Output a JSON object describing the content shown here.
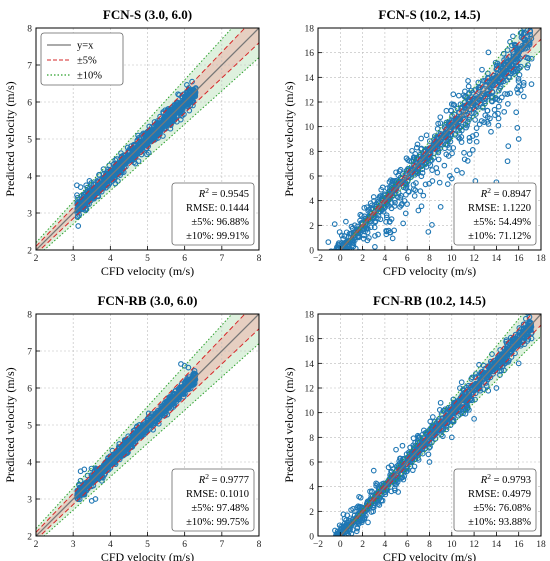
{
  "colors": {
    "points": "#1f77b4",
    "band5": "#e8c9bc",
    "band10": "#d8eed8",
    "identity": "#777777",
    "line5": "#d62728",
    "line10": "#2ca02c"
  },
  "legend": {
    "placement": "top-left of first panel",
    "entries": [
      {
        "label": "y=x",
        "style": "solid-gray"
      },
      {
        "label": "±5%",
        "style": "dashed-red"
      },
      {
        "label": "±10%",
        "style": "dotted-green"
      }
    ]
  },
  "chart_data": [
    {
      "type": "scatter",
      "title": "FCN-S (3.0, 6.0)",
      "xlabel": "CFD velocity (m/s)",
      "ylabel": "Predicted velocity (m/s)",
      "xlim": [
        2,
        8
      ],
      "ylim": [
        2,
        8
      ],
      "xticks": [
        2,
        3,
        4,
        5,
        6,
        7,
        8
      ],
      "yticks": [
        2,
        3,
        4,
        5,
        6,
        7,
        8
      ],
      "xticklabels": [
        "2",
        "3",
        "4",
        "5",
        "6",
        "7",
        "8"
      ],
      "yticklabels": [
        "2",
        "3",
        "4",
        "5",
        "6",
        "7",
        "8"
      ],
      "grid": true,
      "stats": [
        "R² = 0.9545",
        "RMSE: 0.1444",
        "±5%: 96.88%",
        "±10%: 99.91%"
      ],
      "scatter_range": [
        3.1,
        6.3
      ],
      "spread": 0.14,
      "outliers": [
        [
          3.1,
          3.75
        ],
        [
          3.2,
          3.7
        ],
        [
          3.35,
          3.75
        ],
        [
          4.5,
          4.45
        ],
        [
          6.2,
          6.55
        ]
      ]
    },
    {
      "type": "scatter",
      "title": "FCN-S  (10.2, 14.5)",
      "xlabel": "CFD velocity (m/s)",
      "ylabel": "Predicted velocity (m/s)",
      "xlim": [
        -2,
        18
      ],
      "ylim": [
        0,
        18
      ],
      "xticks": [
        -2,
        0,
        2,
        4,
        6,
        8,
        10,
        12,
        14,
        16,
        18
      ],
      "yticks": [
        0,
        2,
        4,
        6,
        8,
        10,
        12,
        14,
        16,
        18
      ],
      "xticklabels": [
        "−2",
        "0",
        "2",
        "4",
        "6",
        "8",
        "10",
        "12",
        "14",
        "16",
        "18"
      ],
      "yticklabels": [
        "0",
        "2",
        "4",
        "6",
        "8",
        "10",
        "12",
        "14",
        "16",
        "18"
      ],
      "grid": true,
      "stats": [
        "R² = 0.8947",
        "RMSE: 1.1220",
        "±5%: 54.49%",
        "±10%: 71.12%"
      ],
      "scatter_range": [
        -1.5,
        17.2
      ],
      "spread": 1.1,
      "outliers": [
        [
          -0.5,
          2.1
        ],
        [
          0.5,
          2.3
        ],
        [
          1.0,
          1.9
        ],
        [
          3.0,
          4.3
        ],
        [
          5.0,
          6.3
        ],
        [
          9.0,
          3.5
        ],
        [
          11.0,
          2.5
        ],
        [
          12.0,
          3.0
        ],
        [
          13.0,
          4.2
        ],
        [
          14.0,
          5.5
        ],
        [
          15.0,
          7.2
        ],
        [
          16.0,
          9.0
        ],
        [
          12.5,
          10.2
        ],
        [
          7.0,
          3.2
        ],
        [
          10.0,
          5.8
        ]
      ]
    },
    {
      "type": "scatter",
      "title": "FCN-RB (3.0, 6.0)",
      "xlabel": "CFD velocity (m/s)",
      "ylabel": "Predicted velocity (m/s)",
      "xlim": [
        2,
        8
      ],
      "ylim": [
        2,
        8
      ],
      "xticks": [
        2,
        3,
        4,
        5,
        6,
        7,
        8
      ],
      "yticks": [
        2,
        3,
        4,
        5,
        6,
        7,
        8
      ],
      "xticklabels": [
        "2",
        "3",
        "4",
        "5",
        "6",
        "7",
        "8"
      ],
      "yticklabels": [
        "2",
        "3",
        "4",
        "5",
        "6",
        "7",
        "8"
      ],
      "grid": true,
      "stats": [
        "R² = 0.9777",
        "RMSE: 0.1010",
        "±5%: 97.48%",
        "±10%: 99.75%"
      ],
      "scatter_range": [
        3.1,
        6.3
      ],
      "spread": 0.1,
      "outliers": [
        [
          3.2,
          3.75
        ],
        [
          3.3,
          3.8
        ],
        [
          3.5,
          2.95
        ],
        [
          3.6,
          3.0
        ],
        [
          5.9,
          6.65
        ],
        [
          6.0,
          6.6
        ],
        [
          6.1,
          6.55
        ]
      ]
    },
    {
      "type": "scatter",
      "title": "FCN-RB (10.2, 14.5)",
      "xlabel": "CFD velocity (m/s)",
      "ylabel": "Predicted velocity (m/s)",
      "xlim": [
        -2,
        18
      ],
      "ylim": [
        0,
        18
      ],
      "xticks": [
        -2,
        0,
        2,
        4,
        6,
        8,
        10,
        12,
        14,
        16,
        18
      ],
      "yticks": [
        0,
        2,
        4,
        6,
        8,
        10,
        12,
        14,
        16,
        18
      ],
      "xticklabels": [
        "−2",
        "0",
        "2",
        "4",
        "6",
        "8",
        "10",
        "12",
        "14",
        "16",
        "18"
      ],
      "yticklabels": [
        "0",
        "2",
        "4",
        "6",
        "8",
        "10",
        "12",
        "14",
        "16",
        "18"
      ],
      "grid": true,
      "stats": [
        "R² = 0.9793",
        "RMSE: 0.4979",
        "±5%: 76.08%",
        "±10%: 93.88%"
      ],
      "scatter_range": [
        -0.5,
        17.2
      ],
      "spread": 0.55,
      "outliers": [
        [
          0.0,
          0.3
        ],
        [
          1.0,
          0.2
        ],
        [
          3.0,
          5.3
        ],
        [
          5.0,
          7.0
        ],
        [
          8.0,
          6.0
        ],
        [
          10.0,
          8.0
        ],
        [
          12.0,
          9.5
        ],
        [
          14.0,
          12.0
        ],
        [
          16.0,
          14.0
        ],
        [
          9.0,
          10.8
        ]
      ]
    }
  ]
}
